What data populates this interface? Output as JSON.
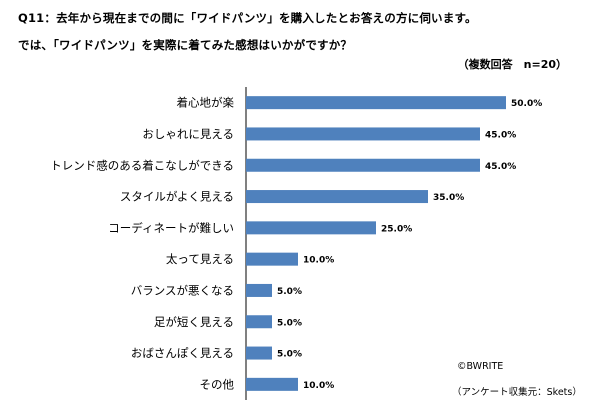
{
  "question": {
    "line1": "Q11：去年から現在までの間に「ワイドパンツ」を購入したとお答えの方に伺います。",
    "line2": "では、「ワイドパンツ」を実際に着てみた感想はいかがですか？"
  },
  "note": "（複数回答　n=20）",
  "credit": {
    "copyright": "©BWRITE",
    "source": "（アンケート収集元：Skets）"
  },
  "chart_data": {
    "type": "bar",
    "orientation": "horizontal",
    "categories": [
      "着心地が楽",
      "おしゃれに見える",
      "トレンド感のある着こなしができる",
      "スタイルがよく見える",
      "コーディネートが難しい",
      "太って見える",
      "バランスが悪くなる",
      "足が短く見える",
      "おばさんぽく見える",
      "その他"
    ],
    "values": [
      50.0,
      45.0,
      45.0,
      35.0,
      25.0,
      10.0,
      5.0,
      5.0,
      5.0,
      10.0
    ],
    "value_labels": [
      "50.0%",
      "45.0%",
      "45.0%",
      "35.0%",
      "25.0%",
      "10.0%",
      "5.0%",
      "5.0%",
      "5.0%",
      "10.0%"
    ],
    "unit": "%",
    "xlim": [
      0,
      50
    ],
    "grid": false,
    "legend": "none",
    "bar_color": "#4f81bd"
  }
}
